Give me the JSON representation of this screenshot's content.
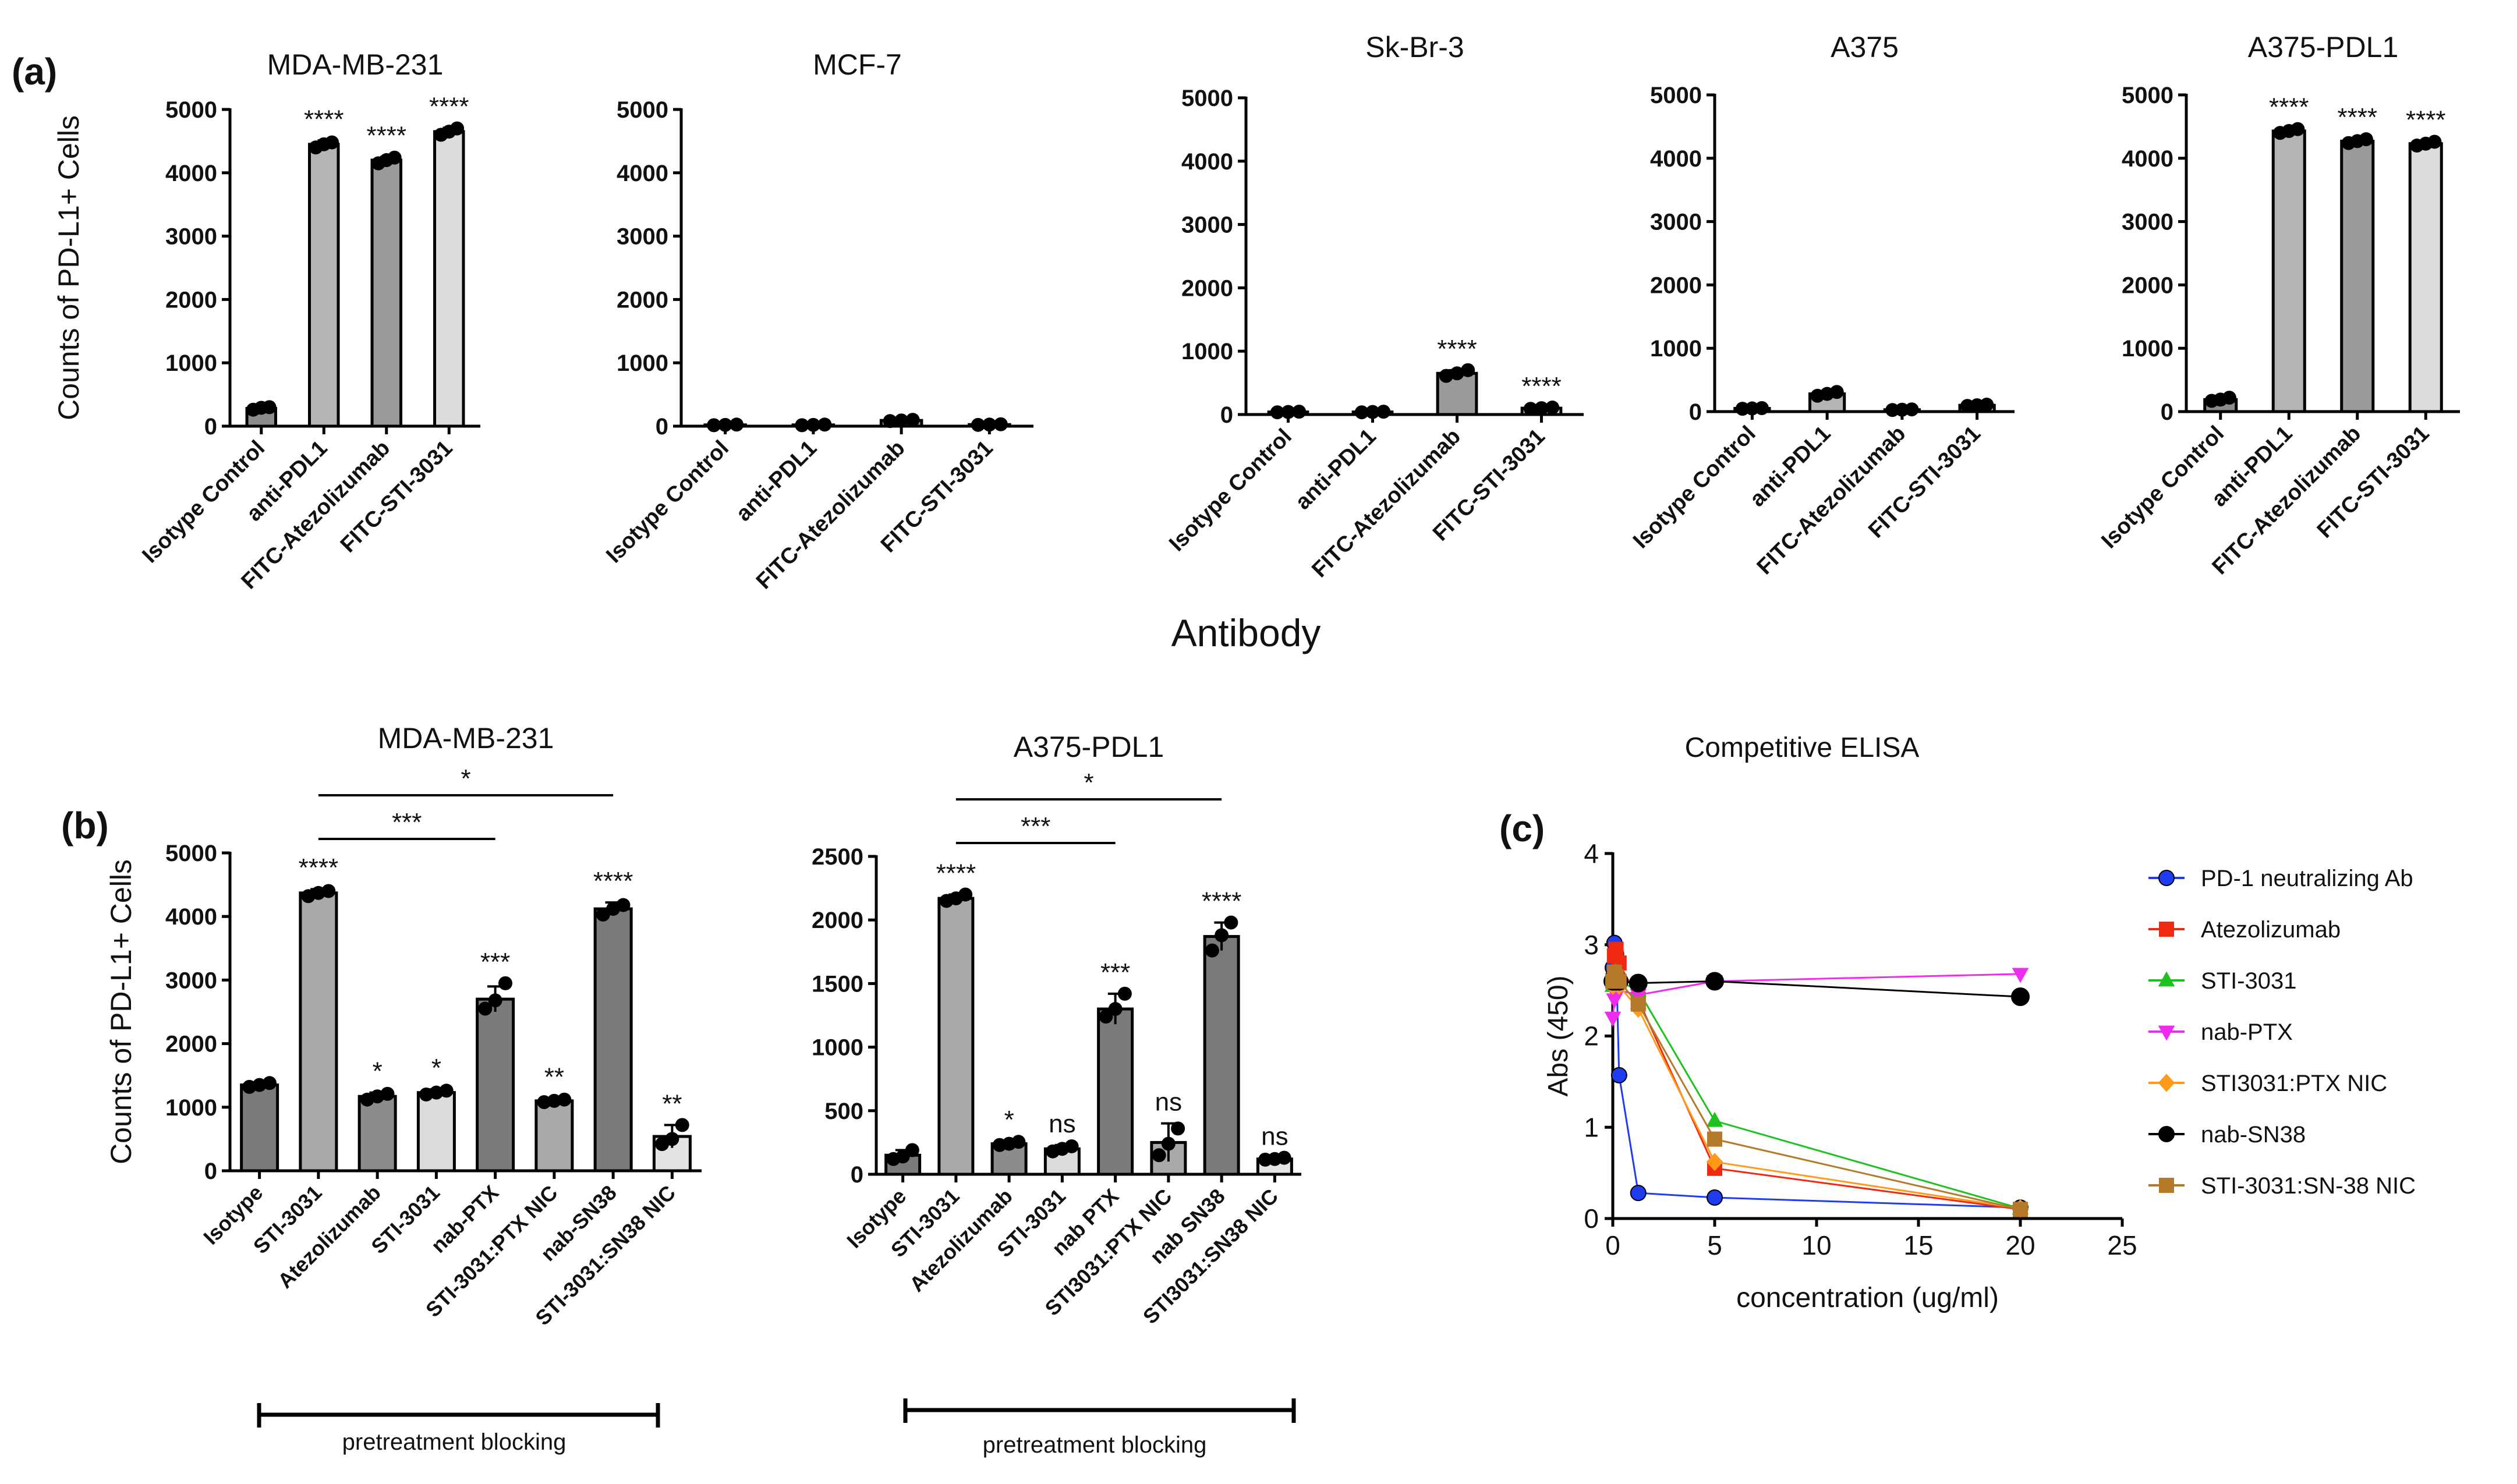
{
  "figure": {
    "panel_a_label": "(a)",
    "panel_b_label": "(b)",
    "panel_c_label": "(c)",
    "a_xlabel": "Antibody",
    "pretreatment_label": "pretreatment blocking"
  },
  "chart_data": [
    {
      "id": "a1",
      "type": "bar",
      "title": "MDA-MB-231",
      "ylabel": "Counts of PD-L1+ Cells",
      "ylim": [
        0,
        5000
      ],
      "yticks": [
        0,
        1000,
        2000,
        3000,
        4000,
        5000
      ],
      "categories": [
        "Isotype Control",
        "anti-PDL1",
        "FITC-Atezolizumab",
        "FITC-STI-3031"
      ],
      "values": [
        280,
        4450,
        4200,
        4650
      ],
      "errors": [
        40,
        60,
        50,
        60
      ],
      "points": [
        [
          260,
          290,
          300
        ],
        [
          4400,
          4450,
          4480
        ],
        [
          4150,
          4200,
          4240
        ],
        [
          4600,
          4650,
          4700
        ]
      ],
      "significance": [
        "",
        "****",
        "****",
        "****"
      ],
      "colors": [
        "#8c8c8c",
        "#b4b4b4",
        "#9a9a9a",
        "#dcdcdc"
      ]
    },
    {
      "id": "a2",
      "type": "bar",
      "title": "MCF-7",
      "ylabel": "",
      "ylim": [
        0,
        5000
      ],
      "yticks": [
        0,
        1000,
        2000,
        3000,
        4000,
        5000
      ],
      "categories": [
        "Isotype Control",
        "anti-PDL1",
        "FITC-Atezolizumab",
        "FITC-STI-3031"
      ],
      "values": [
        20,
        20,
        90,
        25
      ],
      "errors": [
        5,
        5,
        15,
        5
      ],
      "points": [
        [
          15,
          20,
          25
        ],
        [
          15,
          20,
          25
        ],
        [
          80,
          90,
          100
        ],
        [
          20,
          25,
          30
        ]
      ],
      "significance": [
        "",
        "",
        "",
        ""
      ],
      "colors": [
        "#8c8c8c",
        "#b4b4b4",
        "#9a9a9a",
        "#dcdcdc"
      ]
    },
    {
      "id": "a3",
      "type": "bar",
      "title": "Sk-Br-3",
      "ylabel": "",
      "ylim": [
        0,
        5000
      ],
      "yticks": [
        0,
        1000,
        2000,
        3000,
        4000,
        5000
      ],
      "categories": [
        "Isotype Control",
        "anti-PDL1",
        "FITC-Atezolizumab",
        "FITC-STI-3031"
      ],
      "values": [
        40,
        40,
        650,
        100
      ],
      "errors": [
        5,
        5,
        50,
        10
      ],
      "points": [
        [
          35,
          40,
          45
        ],
        [
          35,
          40,
          45
        ],
        [
          610,
          650,
          700
        ],
        [
          90,
          100,
          110
        ]
      ],
      "significance": [
        "",
        "",
        "****",
        "****"
      ],
      "colors": [
        "#8c8c8c",
        "#b4b4b4",
        "#9a9a9a",
        "#dcdcdc"
      ]
    },
    {
      "id": "a4",
      "type": "bar",
      "title": "A375",
      "ylabel": "",
      "ylim": [
        0,
        5000
      ],
      "yticks": [
        0,
        1000,
        2000,
        3000,
        4000,
        5000
      ],
      "categories": [
        "Isotype Control",
        "anti-PDL1",
        "FITC-Atezolizumab",
        "FITC-STI-3031"
      ],
      "values": [
        50,
        280,
        30,
        100
      ],
      "errors": [
        5,
        30,
        5,
        10
      ],
      "points": [
        [
          45,
          50,
          55
        ],
        [
          250,
          280,
          310
        ],
        [
          25,
          30,
          35
        ],
        [
          90,
          100,
          110
        ]
      ],
      "significance": [
        "",
        "",
        "",
        ""
      ],
      "colors": [
        "#8c8c8c",
        "#b4b4b4",
        "#9a9a9a",
        "#dcdcdc"
      ]
    },
    {
      "id": "a5",
      "type": "bar",
      "title": "A375-PDL1",
      "ylabel": "",
      "ylim": [
        0,
        5000
      ],
      "yticks": [
        0,
        1000,
        2000,
        3000,
        4000,
        5000
      ],
      "categories": [
        "Isotype Control",
        "anti-PDL1",
        "FITC-Atezolizumab",
        "FITC-STI-3031"
      ],
      "values": [
        190,
        4430,
        4270,
        4230
      ],
      "errors": [
        30,
        40,
        40,
        40
      ],
      "points": [
        [
          170,
          190,
          220
        ],
        [
          4400,
          4430,
          4460
        ],
        [
          4240,
          4270,
          4300
        ],
        [
          4200,
          4230,
          4260
        ]
      ],
      "significance": [
        "",
        "****",
        "****",
        "****"
      ],
      "colors": [
        "#8c8c8c",
        "#b4b4b4",
        "#9a9a9a",
        "#dcdcdc"
      ]
    },
    {
      "id": "b1",
      "type": "bar",
      "title": "MDA-MB-231",
      "ylabel": "Counts of PD-L1+ Cells",
      "ylim": [
        0,
        5000
      ],
      "yticks": [
        0,
        1000,
        2000,
        3000,
        4000,
        5000
      ],
      "categories": [
        "Isotype",
        "STI-3031",
        "Atezolizumab",
        "STI-3031",
        "nab-PTX",
        "STI-3031:PTX NIC",
        "nab-SN38",
        "STI-3031:SN38 NIC"
      ],
      "values": [
        1350,
        4370,
        1170,
        1230,
        2700,
        1100,
        4120,
        540
      ],
      "errors": [
        40,
        60,
        60,
        50,
        200,
        40,
        100,
        180
      ],
      "points": [
        [
          1320,
          1350,
          1380
        ],
        [
          4320,
          4370,
          4400
        ],
        [
          1120,
          1170,
          1210
        ],
        [
          1200,
          1230,
          1260
        ],
        [
          2550,
          2680,
          2950
        ],
        [
          1080,
          1100,
          1120
        ],
        [
          4030,
          4120,
          4180
        ],
        [
          420,
          500,
          720
        ]
      ],
      "significance": [
        "",
        "****",
        "*",
        "*",
        "***",
        "**",
        "****",
        "**"
      ],
      "brackets": [
        {
          "from": 1,
          "to": 4,
          "label": "***"
        },
        {
          "from": 1,
          "to": 6,
          "label": "*"
        }
      ],
      "colors": [
        "#7a7a7a",
        "#a9a9a9",
        "#8c8c8c",
        "#dcdcdc",
        "#7a7a7a",
        "#a9a9a9",
        "#7a7a7a",
        "#e4e4e4"
      ]
    },
    {
      "id": "b2",
      "type": "bar",
      "title": "A375-PDL1",
      "ylabel": "",
      "ylim": [
        0,
        2500
      ],
      "yticks": [
        0,
        500,
        1000,
        1500,
        2000,
        2500
      ],
      "categories": [
        "Isotype",
        "STI-3031",
        "Atezolizumab",
        "STI-3031",
        "nab PTX",
        "STI3031:PTX NIC",
        "nab SN38",
        "STI3031:SN38 NIC"
      ],
      "values": [
        150,
        2170,
        240,
        200,
        1300,
        250,
        1870,
        120
      ],
      "errors": [
        40,
        30,
        20,
        30,
        120,
        150,
        110,
        10
      ],
      "points": [
        [
          120,
          140,
          190
        ],
        [
          2150,
          2170,
          2200
        ],
        [
          230,
          240,
          255
        ],
        [
          180,
          200,
          220
        ],
        [
          1240,
          1300,
          1420
        ],
        [
          150,
          240,
          360
        ],
        [
          1760,
          1880,
          1980
        ],
        [
          115,
          120,
          130
        ]
      ],
      "significance": [
        "",
        "****",
        "*",
        "ns",
        "***",
        "ns",
        "****",
        "ns"
      ],
      "brackets": [
        {
          "from": 1,
          "to": 4,
          "label": "***"
        },
        {
          "from": 1,
          "to": 6,
          "label": "*"
        }
      ],
      "colors": [
        "#7a7a7a",
        "#a9a9a9",
        "#8c8c8c",
        "#dcdcdc",
        "#7a7a7a",
        "#a9a9a9",
        "#7a7a7a",
        "#e4e4e4"
      ]
    },
    {
      "id": "c",
      "type": "line",
      "title": "Competitive ELISA",
      "xlabel": "concentration (ug/ml)",
      "ylabel": "Abs (450)",
      "xlim": [
        0,
        25
      ],
      "ylim": [
        0,
        4
      ],
      "xticks": [
        0,
        5,
        10,
        15,
        20,
        25
      ],
      "yticks": [
        0,
        1,
        2,
        3,
        4
      ],
      "series": [
        {
          "name": "PD-1 neutralizing Ab",
          "color": "#1f3cf0",
          "marker": "circle",
          "x": [
            0,
            0.08,
            0.16,
            0.31,
            1.25,
            5,
            20
          ],
          "y": [
            2.75,
            3.02,
            2.9,
            1.57,
            0.28,
            0.23,
            0.12
          ]
        },
        {
          "name": "Atezolizumab",
          "color": "#f02a12",
          "marker": "square",
          "x": [
            0,
            0.08,
            0.16,
            0.31,
            1.25,
            5,
            20
          ],
          "y": [
            2.6,
            2.88,
            2.95,
            2.8,
            2.4,
            0.55,
            0.1
          ]
        },
        {
          "name": "STI-3031",
          "color": "#1ec21e",
          "marker": "triangle-up",
          "x": [
            0,
            0.08,
            0.16,
            0.31,
            1.25,
            5,
            20
          ],
          "y": [
            2.55,
            2.65,
            2.7,
            2.6,
            2.5,
            1.07,
            0.11
          ]
        },
        {
          "name": "nab-PTX",
          "color": "#ee2cee",
          "marker": "triangle-down",
          "x": [
            0,
            0.08,
            0.16,
            0.31,
            1.25,
            5,
            20
          ],
          "y": [
            2.2,
            2.4,
            2.45,
            2.5,
            2.45,
            2.6,
            2.68
          ]
        },
        {
          "name": "STI3031:PTX NIC",
          "color": "#ff9a1a",
          "marker": "diamond",
          "x": [
            0,
            0.08,
            0.16,
            0.31,
            1.25,
            5,
            20
          ],
          "y": [
            2.55,
            2.65,
            2.6,
            2.55,
            2.3,
            0.62,
            0.11
          ]
        },
        {
          "name": "nab-SN38",
          "color": "#000000",
          "marker": "circle",
          "x": [
            0,
            0.08,
            0.16,
            0.31,
            1.25,
            5,
            20
          ],
          "y": [
            2.6,
            2.65,
            2.6,
            2.6,
            2.58,
            2.6,
            2.43
          ]
        },
        {
          "name": "STI-3031:SN-38 NIC",
          "color": "#b47a2a",
          "marker": "square",
          "x": [
            0,
            0.08,
            0.16,
            0.31,
            1.25,
            5,
            20
          ],
          "y": [
            2.6,
            2.7,
            2.65,
            2.6,
            2.35,
            0.87,
            0.1
          ]
        }
      ]
    }
  ]
}
